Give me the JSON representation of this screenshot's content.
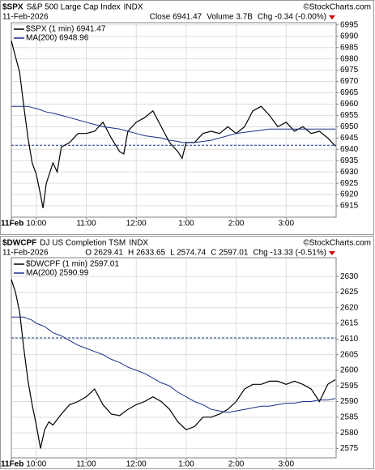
{
  "chart_data": [
    {
      "type": "line",
      "ticker": "$SPX",
      "title": "S&P 500 Large Cap Index",
      "exchange": "INDX",
      "watermark": "©StockCharts.com",
      "date": "11-Feb-2026",
      "stats": [
        "Close 6941.47",
        "Volume 3.7B",
        "Chg -0.34 (-0.00%)"
      ],
      "change_color": "#cc0000",
      "x": [
        "9:30",
        "9:35",
        "9:40",
        "9:45",
        "9:50",
        "9:55",
        "10:00",
        "10:05",
        "10:08",
        "10:12",
        "10:20",
        "10:25",
        "10:30",
        "10:40",
        "10:50",
        "11:00",
        "11:10",
        "11:20",
        "11:30",
        "11:40",
        "11:45",
        "11:50",
        "12:00",
        "12:10",
        "12:20",
        "12:30",
        "12:40",
        "12:50",
        "12:55",
        "13:00",
        "13:10",
        "13:20",
        "13:30",
        "13:40",
        "13:50",
        "14:00",
        "14:10",
        "14:20",
        "14:30",
        "14:40",
        "14:50",
        "15:00",
        "15:10",
        "15:20",
        "15:30",
        "15:40",
        "15:50",
        "15:59"
      ],
      "series": [
        {
          "name": "$SPX (1 min) 6941.47",
          "color": "#000000",
          "values": [
            6988,
            6981,
            6974,
            6959,
            6945,
            6934,
            6929,
            6920,
            6914,
            6925,
            6934,
            6930,
            6941,
            6943,
            6947,
            6947,
            6948,
            6952,
            6945,
            6939,
            6938,
            6948,
            6952,
            6954,
            6957,
            6950,
            6943,
            6939,
            6936,
            6943,
            6943,
            6947,
            6948,
            6947,
            6950,
            6947,
            6950,
            6957,
            6959,
            6955,
            6950,
            6952,
            6948,
            6950,
            6947,
            6948,
            6945,
            6941.47
          ]
        },
        {
          "name": "MA(200) 6948.96",
          "color": "#1a2f8a",
          "values": [
            6959,
            6959,
            6959,
            6959,
            6959,
            6958.5,
            6958,
            6957.5,
            6957,
            6956.5,
            6956,
            6955.5,
            6955,
            6954,
            6953,
            6952,
            6951,
            6950,
            6949.5,
            6949,
            6948.5,
            6948,
            6947,
            6946,
            6945.5,
            6945,
            6944,
            6943.5,
            6943,
            6943,
            6943,
            6943.5,
            6944,
            6945,
            6946,
            6947,
            6947.5,
            6948,
            6948.5,
            6949,
            6949,
            6949,
            6949,
            6949,
            6949,
            6949,
            6949,
            6948.96
          ]
        }
      ],
      "reference_line": 6941.81,
      "reference_color": "#1a2f8a",
      "xlim": [
        "9:30",
        "16:00"
      ],
      "xticks": [
        {
          "value": "9:30",
          "label": "11Feb"
        },
        "10:00",
        "11:00",
        "12:00",
        {
          "value": "13:00",
          "label": "1:00"
        },
        {
          "value": "14:00",
          "label": "2:00"
        },
        {
          "value": "15:00",
          "label": "3:00"
        }
      ],
      "ylim": [
        6910,
        6996
      ],
      "yticks": [
        6915,
        6920,
        6925,
        6930,
        6935,
        6940,
        6945,
        6950,
        6955,
        6960,
        6965,
        6970,
        6975,
        6980,
        6985,
        6990,
        6995
      ],
      "grid": true
    },
    {
      "type": "line",
      "ticker": "$DWCPF",
      "title": "DJ US Completion TSM",
      "exchange": "INDX",
      "watermark": "©StockCharts.com",
      "date": "11-Feb-2026",
      "stats": [
        "O 2629.41",
        "H 2633.65",
        "L 2574.74",
        "C 2597.01",
        "Chg -13.33 (-0.51%)"
      ],
      "change_color": "#cc0000",
      "x": [
        "9:30",
        "9:35",
        "9:40",
        "9:45",
        "9:50",
        "9:55",
        "10:00",
        "10:05",
        "10:10",
        "10:15",
        "10:20",
        "10:30",
        "10:40",
        "10:50",
        "11:00",
        "11:10",
        "11:20",
        "11:30",
        "11:40",
        "11:50",
        "12:00",
        "12:10",
        "12:20",
        "12:30",
        "12:40",
        "12:50",
        "13:00",
        "13:10",
        "13:20",
        "13:30",
        "13:40",
        "13:50",
        "14:00",
        "14:10",
        "14:20",
        "14:30",
        "14:40",
        "14:50",
        "15:00",
        "15:10",
        "15:20",
        "15:30",
        "15:40",
        "15:50",
        "15:59"
      ],
      "series": [
        {
          "name": "$DWCPF (1 min) 2597.01",
          "color": "#000000",
          "values": [
            2629,
            2625,
            2618.5,
            2607,
            2596.5,
            2589,
            2582.5,
            2575,
            2581,
            2583.5,
            2582.5,
            2586,
            2589,
            2590,
            2591.5,
            2594,
            2589,
            2586,
            2585.5,
            2587.5,
            2589,
            2590,
            2591.5,
            2590,
            2587.5,
            2583.5,
            2581,
            2582,
            2585,
            2585,
            2586,
            2587.5,
            2590,
            2594,
            2595.5,
            2595.5,
            2596.5,
            2596.5,
            2595.5,
            2596.5,
            2595.5,
            2594,
            2590,
            2595.5,
            2597.01
          ]
        },
        {
          "name": "MA(200) 2590.99",
          "color": "#1a2f8a",
          "values": [
            2617,
            2617,
            2617,
            2617,
            2616.5,
            2616,
            2615,
            2614.5,
            2614,
            2613,
            2612,
            2611,
            2609.5,
            2608,
            2607,
            2606,
            2605,
            2603.5,
            2602.5,
            2601,
            2600,
            2599,
            2597.5,
            2596,
            2595,
            2593,
            2591.5,
            2590,
            2589,
            2587.5,
            2587,
            2586.5,
            2587,
            2587.5,
            2588,
            2588.5,
            2588.5,
            2589,
            2589.5,
            2589.5,
            2590,
            2590,
            2590.5,
            2590.5,
            2590.99
          ]
        }
      ],
      "reference_line": 2610.34,
      "reference_color": "#1a2f8a",
      "xlim": [
        "9:30",
        "16:00"
      ],
      "xticks": [
        {
          "value": "9:30",
          "label": "11Feb"
        },
        "10:00",
        "11:00",
        "12:00",
        {
          "value": "13:00",
          "label": "1:00"
        },
        {
          "value": "14:00",
          "label": "2:00"
        },
        {
          "value": "15:00",
          "label": "3:00"
        }
      ],
      "ylim": [
        2572,
        2636
      ],
      "yticks": [
        2575,
        2580,
        2585,
        2590,
        2595,
        2600,
        2605,
        2610,
        2615,
        2620,
        2625,
        2630
      ],
      "grid": true
    }
  ]
}
